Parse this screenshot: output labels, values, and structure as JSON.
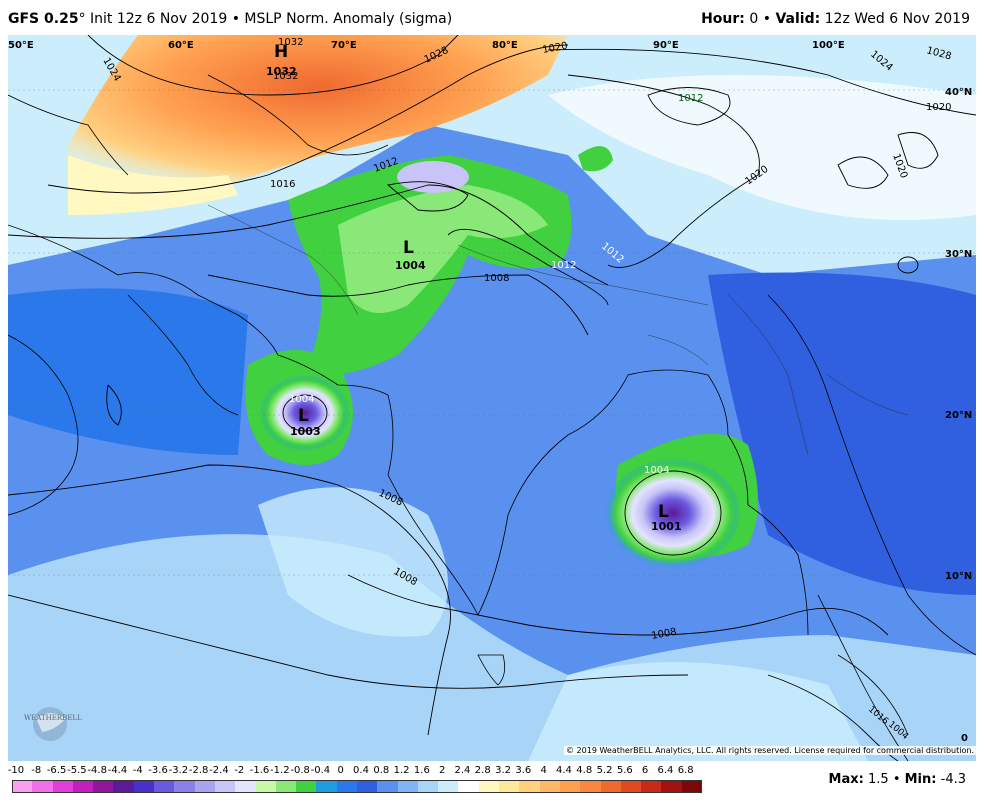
{
  "header": {
    "model": "GFS 0.25",
    "degree": "°",
    "init": "Init 12z 6 Nov 2019",
    "sep": "•",
    "product": "MSLP Norm. Anomaly (sigma)",
    "hour_label": "Hour:",
    "hour_value": "0",
    "valid_label": "Valid:",
    "valid_value": "12z Wed 6 Nov 2019"
  },
  "map": {
    "lon_labels": [
      "50°E",
      "60°E",
      "70°E",
      "80°E",
      "90°E",
      "100°E"
    ],
    "lat_labels": [
      "40°N",
      "30°N",
      "20°N",
      "10°N",
      "0"
    ],
    "isobar_labels": [
      "1032",
      "1032",
      "1028",
      "1024",
      "1020",
      "1020",
      "1020",
      "1020",
      "1016",
      "1012",
      "1012",
      "1012",
      "1012",
      "1008",
      "1008",
      "1008",
      "1008",
      "1004",
      "1004",
      "1028",
      "1024",
      "1016",
      "1004"
    ],
    "centers": [
      {
        "type": "H",
        "value": "1032",
        "color": "#1a1aff"
      },
      {
        "type": "L",
        "value": "1004",
        "color": "#e00000"
      },
      {
        "type": "L",
        "value": "1003",
        "color": "#e00000"
      },
      {
        "type": "L",
        "value": "1001",
        "color": "#e00000"
      }
    ],
    "logo_text": "WEATHERBELL"
  },
  "footer": {
    "copyright": "© 2019 WeatherBELL Analytics, LLC. All rights reserved. License required for commercial distribution.",
    "max_label": "Max:",
    "max_value": "1.5",
    "min_label": "Min:",
    "min_value": "-4.3",
    "sep": "•"
  },
  "colorbar": {
    "labels": [
      "-10",
      "-8",
      "-6.5",
      "-5.5",
      "-4.8",
      "-4.4",
      "-4",
      "-3.6",
      "-3.2",
      "-2.8",
      "-2.4",
      "-2",
      "-1.6",
      "-1.2",
      "-0.8",
      "-0.4",
      "0",
      "0.4",
      "0.8",
      "1.2",
      "1.6",
      "2",
      "2.4",
      "2.8",
      "3.2",
      "3.6",
      "4",
      "4.4",
      "4.8",
      "5.2",
      "5.6",
      "6",
      "6.4",
      "6.8"
    ],
    "colors": [
      "#f9a0f0",
      "#f070e8",
      "#e040d8",
      "#c020c0",
      "#901898",
      "#5a1a9a",
      "#4a30c8",
      "#6a5ae0",
      "#8a80ea",
      "#aaa4f0",
      "#c8c4f8",
      "#e4e4ff",
      "#c8f8a8",
      "#8ae878",
      "#40d040",
      "#1e9ee0",
      "#2a78ea",
      "#3060e0",
      "#5a90ee",
      "#80b4f4",
      "#a8d4f8",
      "#cceefc",
      "#ffffff",
      "#fff8c0",
      "#ffe89a",
      "#ffd080",
      "#ffb868",
      "#ffa050",
      "#f88840",
      "#f06a30",
      "#e04a22",
      "#c82a18",
      "#a01210",
      "#7a0808"
    ]
  }
}
